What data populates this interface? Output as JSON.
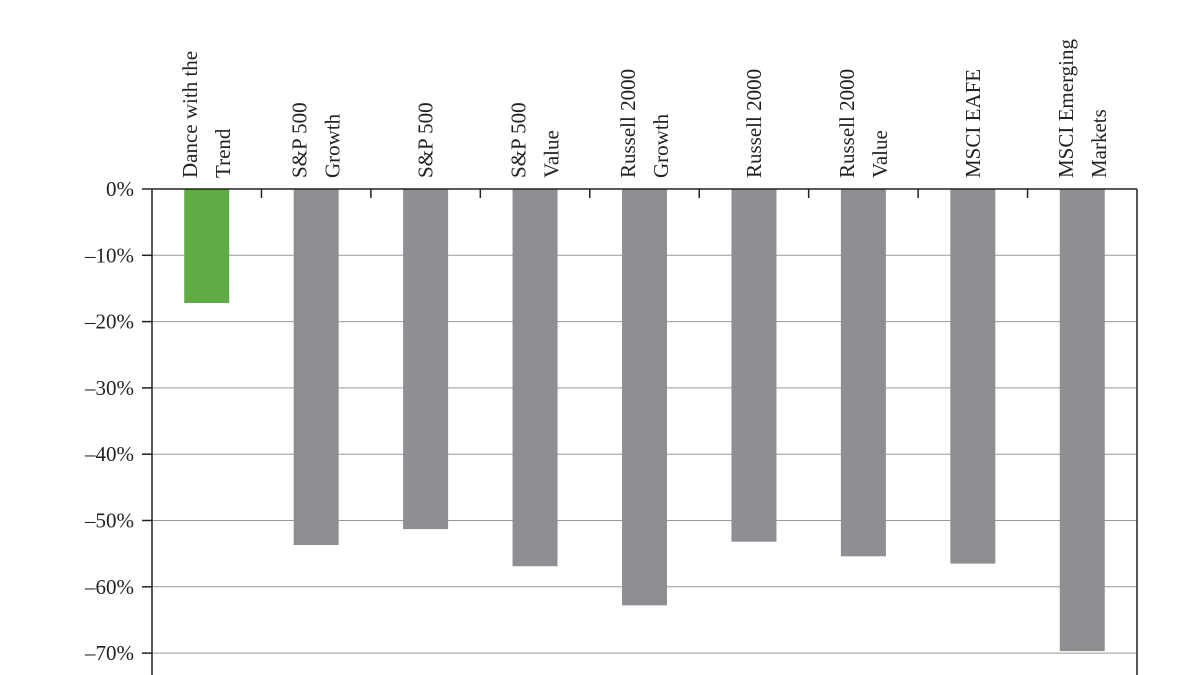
{
  "chart_data": {
    "type": "bar",
    "orientation": "vertical",
    "categories": [
      [
        "Dance with the",
        "Trend"
      ],
      [
        "S&P 500",
        "Growth"
      ],
      [
        "S&P 500"
      ],
      [
        "S&P 500",
        "Value"
      ],
      [
        "Russell 2000",
        "Growth"
      ],
      [
        "Russell 2000"
      ],
      [
        "Russell 2000",
        "Value"
      ],
      [
        "MSCI EAFE"
      ],
      [
        "MSCI Emerging",
        "Markets"
      ]
    ],
    "values": [
      -17.2,
      -53.7,
      -51.3,
      -56.9,
      -62.8,
      -53.2,
      -55.4,
      -56.5,
      -69.7
    ],
    "colors": [
      "#5fab44",
      "#8e8f92",
      "#8e8f92",
      "#8e8f92",
      "#8e8f92",
      "#8e8f92",
      "#8e8f92",
      "#8e8f92",
      "#8e8f92"
    ],
    "yticks": [
      0,
      -10,
      -20,
      -30,
      -40,
      -50,
      -60,
      -70
    ],
    "ytick_labels": [
      "0%",
      "–10%",
      "–20%",
      "–30%",
      "–40%",
      "–50%",
      "–60%",
      "–70%"
    ],
    "ylim": [
      -70,
      0
    ],
    "grid": true,
    "category_labels_position": "top-rotated"
  }
}
